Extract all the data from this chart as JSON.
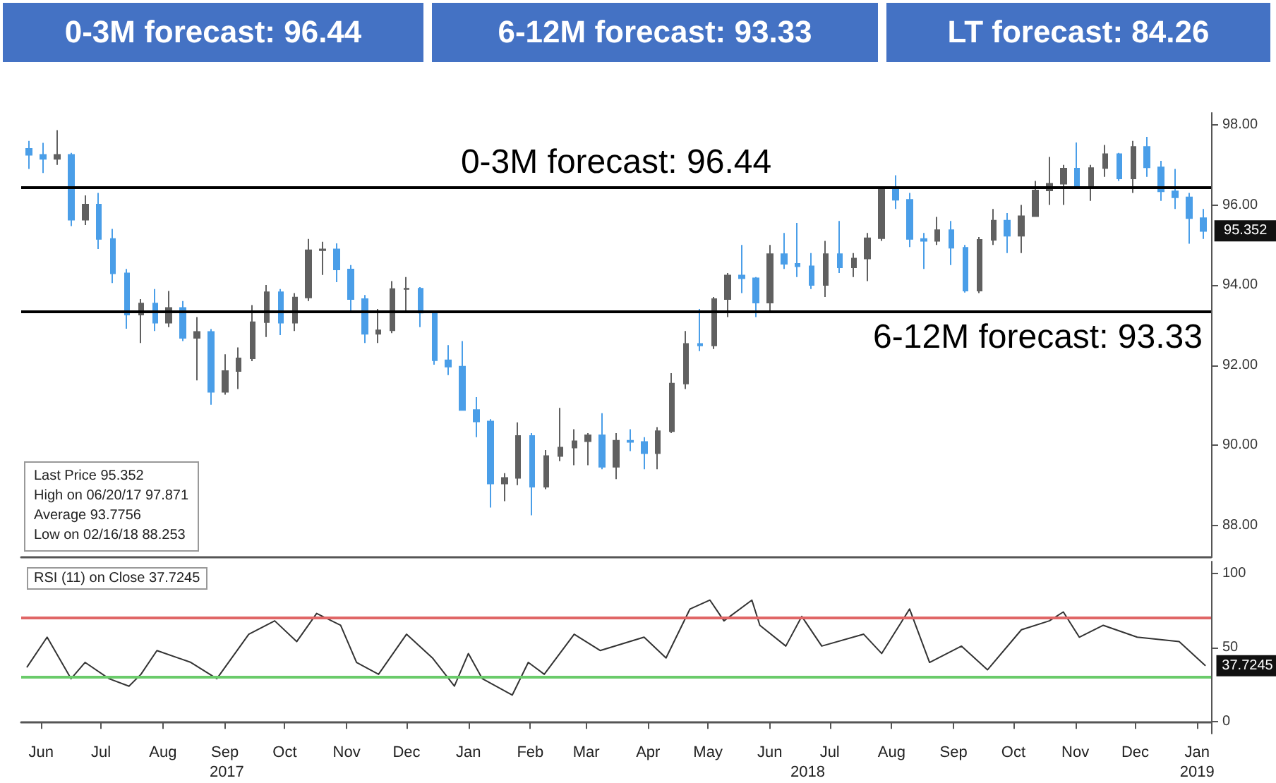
{
  "chart_data": [
    {
      "type": "candlestick",
      "annotations": [
        "0-3M forecast: 96.44",
        "6-12M forecast: 93.33",
        "LT forecast: 84.26",
        "Last Price 95.352",
        "High on 06/20/17 97.871",
        "Average 93.7756",
        "Low on 02/16/18 88.253",
        {
          "text": "95.352",
          "x": "2019-01-18",
          "y": 95.352
        }
      ],
      "x": [
        "2017-06-09",
        "2017-06-16",
        "2017-06-23",
        "2017-06-30",
        "2017-07-07",
        "2017-07-14",
        "2017-07-21",
        "2017-07-28",
        "2017-08-04",
        "2017-08-11",
        "2017-08-18",
        "2017-08-25",
        "2017-09-01",
        "2017-09-08",
        "2017-09-15",
        "2017-09-22",
        "2017-09-29",
        "2017-10-06",
        "2017-10-13",
        "2017-10-20",
        "2017-10-27",
        "2017-11-03",
        "2017-11-10",
        "2017-11-17",
        "2017-11-24",
        "2017-12-01",
        "2017-12-08",
        "2017-12-15",
        "2017-12-22",
        "2017-12-29",
        "2018-01-05",
        "2018-01-12",
        "2018-01-19",
        "2018-01-26",
        "2018-02-02",
        "2018-02-09",
        "2018-02-16",
        "2018-02-23",
        "2018-03-02",
        "2018-03-09",
        "2018-03-16",
        "2018-03-23",
        "2018-03-30",
        "2018-04-06",
        "2018-04-13",
        "2018-04-20",
        "2018-04-27",
        "2018-05-04",
        "2018-05-11",
        "2018-05-18",
        "2018-05-25",
        "2018-06-01",
        "2018-06-08",
        "2018-06-15",
        "2018-06-22",
        "2018-06-29",
        "2018-07-06",
        "2018-07-13",
        "2018-07-20",
        "2018-07-27",
        "2018-08-03",
        "2018-08-10",
        "2018-08-17",
        "2018-08-24",
        "2018-08-31",
        "2018-09-07",
        "2018-09-14",
        "2018-09-21",
        "2018-09-28",
        "2018-10-05",
        "2018-10-12",
        "2018-10-19",
        "2018-10-26",
        "2018-11-02",
        "2018-11-09",
        "2018-11-16",
        "2018-11-23",
        "2018-11-30",
        "2018-12-07",
        "2018-12-14",
        "2018-12-21",
        "2018-12-28",
        "2019-01-04",
        "2019-01-11",
        "2019-01-18"
      ],
      "ohlc": [
        [
          97.4,
          97.6,
          96.9,
          97.25
        ],
        [
          97.25,
          97.55,
          96.8,
          97.15
        ],
        [
          97.15,
          97.87,
          97.0,
          97.25
        ],
        [
          97.25,
          97.3,
          95.47,
          95.63
        ],
        [
          95.63,
          96.24,
          95.5,
          96.01
        ],
        [
          96.01,
          96.3,
          94.9,
          95.15
        ],
        [
          95.15,
          95.4,
          94.05,
          94.29
        ],
        [
          94.29,
          94.4,
          92.91,
          93.26
        ],
        [
          93.26,
          93.65,
          92.55,
          93.54
        ],
        [
          93.54,
          93.9,
          92.85,
          93.06
        ],
        [
          93.06,
          93.85,
          92.95,
          93.43
        ],
        [
          93.43,
          93.6,
          92.6,
          92.68
        ],
        [
          92.68,
          93.2,
          91.62,
          92.83
        ],
        [
          92.83,
          92.9,
          91.01,
          91.33
        ],
        [
          91.33,
          92.27,
          91.26,
          91.85
        ],
        [
          91.85,
          92.44,
          91.4,
          92.17
        ],
        [
          92.17,
          93.5,
          92.1,
          93.07
        ],
        [
          93.07,
          94.0,
          92.7,
          93.82
        ],
        [
          93.82,
          93.9,
          92.75,
          93.06
        ],
        [
          93.06,
          93.8,
          92.85,
          93.69
        ],
        [
          93.69,
          95.15,
          93.6,
          94.87
        ],
        [
          94.87,
          95.08,
          94.25,
          94.89
        ],
        [
          94.89,
          95.04,
          94.07,
          94.39
        ],
        [
          94.39,
          94.5,
          93.35,
          93.65
        ],
        [
          93.65,
          93.75,
          92.55,
          92.78
        ],
        [
          92.78,
          93.4,
          92.55,
          92.87
        ],
        [
          92.87,
          94.1,
          92.8,
          93.9
        ],
        [
          93.9,
          94.2,
          93.3,
          93.91
        ],
        [
          93.91,
          93.95,
          92.95,
          93.31
        ],
        [
          93.31,
          93.35,
          92.01,
          92.12
        ],
        [
          92.12,
          92.5,
          91.75,
          91.96
        ],
        [
          91.96,
          92.6,
          90.88,
          90.88
        ],
        [
          90.88,
          91.2,
          90.2,
          90.59
        ],
        [
          90.59,
          90.65,
          88.44,
          89.04
        ],
        [
          89.04,
          89.3,
          88.6,
          89.18
        ],
        [
          89.18,
          90.57,
          89.0,
          90.23
        ],
        [
          90.23,
          90.3,
          88.25,
          88.96
        ],
        [
          88.96,
          89.88,
          88.9,
          89.73
        ],
        [
          89.73,
          90.93,
          89.6,
          89.94
        ],
        [
          89.94,
          90.4,
          89.5,
          90.1
        ],
        [
          90.1,
          90.3,
          89.5,
          90.25
        ],
        [
          90.25,
          90.8,
          89.4,
          89.46
        ],
        [
          89.46,
          90.3,
          89.15,
          90.11
        ],
        [
          90.11,
          90.4,
          89.85,
          90.08
        ],
        [
          90.08,
          90.2,
          89.4,
          89.8
        ],
        [
          89.8,
          90.45,
          89.4,
          90.35
        ],
        [
          90.35,
          91.8,
          90.3,
          91.54
        ],
        [
          91.54,
          92.85,
          91.4,
          92.53
        ],
        [
          92.53,
          93.4,
          92.35,
          92.49
        ],
        [
          92.49,
          93.7,
          92.4,
          93.65
        ],
        [
          93.65,
          94.3,
          93.2,
          94.24
        ],
        [
          94.24,
          95.0,
          93.8,
          94.17
        ],
        [
          94.17,
          94.2,
          93.2,
          93.56
        ],
        [
          93.56,
          95.0,
          93.35,
          94.77
        ],
        [
          94.77,
          95.3,
          94.4,
          94.53
        ],
        [
          94.53,
          95.55,
          94.2,
          94.47
        ],
        [
          94.47,
          94.8,
          93.9,
          94.0
        ],
        [
          94.0,
          95.1,
          93.7,
          94.77
        ],
        [
          94.77,
          95.6,
          94.3,
          94.44
        ],
        [
          94.44,
          94.8,
          94.2,
          94.66
        ],
        [
          94.66,
          95.3,
          94.1,
          95.17
        ],
        [
          95.17,
          96.4,
          95.1,
          96.38
        ],
        [
          96.38,
          96.74,
          95.9,
          96.13
        ],
        [
          96.13,
          96.3,
          94.95,
          95.15
        ],
        [
          95.15,
          95.3,
          94.4,
          95.1
        ],
        [
          95.1,
          95.7,
          95.0,
          95.37
        ],
        [
          95.37,
          95.6,
          94.5,
          94.93
        ],
        [
          94.93,
          95.0,
          93.81,
          93.86
        ],
        [
          93.86,
          95.2,
          93.8,
          95.13
        ],
        [
          95.13,
          95.9,
          95.0,
          95.61
        ],
        [
          95.61,
          95.8,
          94.8,
          95.23
        ],
        [
          95.23,
          96.0,
          94.8,
          95.72
        ],
        [
          95.72,
          96.6,
          95.7,
          96.36
        ],
        [
          96.36,
          97.2,
          96.0,
          96.53
        ],
        [
          96.53,
          97.0,
          96.0,
          96.91
        ],
        [
          96.91,
          97.56,
          96.4,
          96.45
        ],
        [
          96.45,
          97.0,
          96.1,
          96.92
        ],
        [
          96.92,
          97.5,
          96.7,
          97.27
        ],
        [
          97.27,
          97.3,
          96.6,
          96.66
        ],
        [
          96.66,
          97.6,
          96.3,
          97.45
        ],
        [
          97.45,
          97.7,
          96.7,
          96.94
        ],
        [
          96.94,
          97.1,
          96.1,
          96.34
        ],
        [
          96.34,
          96.9,
          95.9,
          96.19
        ],
        [
          96.19,
          96.3,
          95.03,
          95.67
        ],
        [
          95.67,
          95.9,
          95.15,
          95.35
        ]
      ],
      "colors": [
        "#4a9ee8",
        "#4a9ee8",
        "#606060",
        "#4a9ee8",
        "#606060",
        "#4a9ee8",
        "#4a9ee8",
        "#4a9ee8",
        "#606060",
        "#4a9ee8",
        "#606060",
        "#4a9ee8",
        "#606060",
        "#4a9ee8",
        "#606060",
        "#606060",
        "#606060",
        "#606060",
        "#4a9ee8",
        "#606060",
        "#606060",
        "#606060",
        "#4a9ee8",
        "#4a9ee8",
        "#4a9ee8",
        "#606060",
        "#606060",
        "#606060",
        "#4a9ee8",
        "#4a9ee8",
        "#4a9ee8",
        "#4a9ee8",
        "#4a9ee8",
        "#4a9ee8",
        "#606060",
        "#606060",
        "#4a9ee8",
        "#606060",
        "#606060",
        "#606060",
        "#606060",
        "#4a9ee8",
        "#606060",
        "#4a9ee8",
        "#4a9ee8",
        "#606060",
        "#606060",
        "#606060",
        "#4a9ee8",
        "#606060",
        "#606060",
        "#4a9ee8",
        "#4a9ee8",
        "#606060",
        "#4a9ee8",
        "#4a9ee8",
        "#4a9ee8",
        "#606060",
        "#4a9ee8",
        "#606060",
        "#606060",
        "#606060",
        "#4a9ee8",
        "#4a9ee8",
        "#4a9ee8",
        "#606060",
        "#4a9ee8",
        "#4a9ee8",
        "#606060",
        "#606060",
        "#4a9ee8",
        "#606060",
        "#606060",
        "#606060",
        "#606060",
        "#4a9ee8",
        "#606060",
        "#606060",
        "#4a9ee8",
        "#606060",
        "#4a9ee8",
        "#4a9ee8",
        "#4a9ee8",
        "#4a9ee8",
        "#4a9ee8"
      ],
      "xlim": [
        "2017-06-05",
        "2019-01-22"
      ],
      "ylim": [
        87.2,
        98.3
      ],
      "yticks": [
        {
          "value": 88,
          "label": "88.00"
        },
        {
          "value": 90,
          "label": "90.00"
        },
        {
          "value": 92,
          "label": "92.00"
        },
        {
          "value": 94,
          "label": "94.00"
        },
        {
          "value": 96,
          "label": "96.00"
        },
        {
          "value": 98,
          "label": "98.00"
        }
      ],
      "tick_labels": "y",
      "ref_lines": [
        {
          "axis": "y",
          "value": 96.44,
          "label": "0-3M forecast: 96.44",
          "color": "#000000"
        },
        {
          "axis": "y",
          "value": 93.33,
          "label": "6-12M forecast: 93.33",
          "color": "#000000"
        }
      ]
    },
    {
      "type": "line",
      "title": "RSI (11) on Close 37.7245",
      "color": "#333333",
      "marker": "none",
      "line_style": "solid",
      "annotations": [
        {
          "text": "37.7245",
          "x": "2019-01-19",
          "y": 37.7245
        }
      ],
      "x": [
        "2017-06-08",
        "2017-06-18",
        "2017-06-30",
        "2017-07-07",
        "2017-07-19",
        "2017-07-29",
        "2017-08-04",
        "2017-08-12",
        "2017-08-29",
        "2017-09-11",
        "2017-09-27",
        "2017-10-10",
        "2017-10-21",
        "2017-10-31",
        "2017-11-12",
        "2017-11-20",
        "2017-12-01",
        "2017-12-15",
        "2017-12-28",
        "2018-01-08",
        "2018-01-15",
        "2018-01-22",
        "2018-02-06",
        "2018-02-14",
        "2018-02-22",
        "2018-03-09",
        "2018-03-22",
        "2018-04-13",
        "2018-04-24",
        "2018-05-06",
        "2018-05-16",
        "2018-05-23",
        "2018-06-06",
        "2018-06-10",
        "2018-06-23",
        "2018-07-01",
        "2018-07-11",
        "2018-08-01",
        "2018-08-10",
        "2018-08-24",
        "2018-09-03",
        "2018-09-19",
        "2018-10-02",
        "2018-10-19",
        "2018-11-02",
        "2018-11-09",
        "2018-11-17",
        "2018-11-29",
        "2018-12-16",
        "2019-01-06",
        "2019-01-19"
      ],
      "values": [
        37,
        57,
        29,
        40,
        29,
        24,
        32,
        48,
        40,
        29,
        59,
        68,
        54,
        73,
        65,
        40,
        32,
        59,
        43,
        24,
        46,
        29,
        18,
        40,
        32,
        59,
        48,
        57,
        43,
        76,
        82,
        68,
        82,
        65,
        51,
        71,
        51,
        59,
        46,
        76,
        40,
        51,
        35,
        62,
        68,
        74,
        57,
        65,
        57,
        54,
        38
      ],
      "xlim": [
        "2017-06-05",
        "2019-01-22"
      ],
      "ylim": [
        -8,
        108
      ],
      "yticks": [
        0,
        50,
        100
      ],
      "xticks": [
        {
          "value": "2017-06-15",
          "label": "Jun"
        },
        {
          "value": "2017-07-15",
          "label": "Jul"
        },
        {
          "value": "2017-08-15",
          "label": "Aug"
        },
        {
          "value": "2017-09-15",
          "label": "Sep"
        },
        {
          "value": "2017-10-15",
          "label": "Oct"
        },
        {
          "value": "2017-11-15",
          "label": "Nov"
        },
        {
          "value": "2017-12-15",
          "label": "Dec"
        },
        {
          "value": "2018-01-15",
          "label": "Jan"
        },
        {
          "value": "2018-02-15",
          "label": "Feb"
        },
        {
          "value": "2018-03-15",
          "label": "Mar"
        },
        {
          "value": "2018-04-15",
          "label": "Apr"
        },
        {
          "value": "2018-05-15",
          "label": "May"
        },
        {
          "value": "2018-06-15",
          "label": "Jun"
        },
        {
          "value": "2018-07-15",
          "label": "Jul"
        },
        {
          "value": "2018-08-15",
          "label": "Aug"
        },
        {
          "value": "2018-09-15",
          "label": "Sep"
        },
        {
          "value": "2018-10-15",
          "label": "Oct"
        },
        {
          "value": "2018-11-15",
          "label": "Nov"
        },
        {
          "value": "2018-12-15",
          "label": "Dec"
        },
        {
          "value": "2019-01-15",
          "label": "Jan"
        }
      ],
      "x2lim": [
        "2017-06-05",
        "2019-01-22"
      ],
      "x2ticks": [
        {
          "value": "2017-09-16",
          "label": "2017"
        },
        {
          "value": "2018-07-04",
          "label": "2018"
        },
        {
          "value": "2019-01-15",
          "label": "2019"
        }
      ],
      "ref_lines": [
        {
          "axis": "y",
          "value": 70,
          "color": "#e06666"
        },
        {
          "axis": "y",
          "value": 30,
          "color": "#6acb6a"
        }
      ]
    }
  ]
}
